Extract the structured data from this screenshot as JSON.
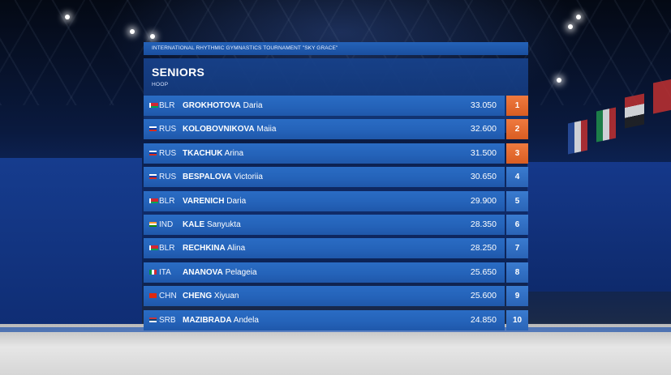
{
  "tournament_title": "INTERNATIONAL RHYTHMIC GYMNASTICS TOURNAMENT \"SKY GRACE\"",
  "category": "SENIORS",
  "apparatus": "HOOP",
  "results": [
    {
      "rank": "1",
      "noc": "BLR",
      "surname": "GROKHOTOVA",
      "given": "Daria",
      "score": "33.050",
      "flag_colors": [
        "#d22730",
        "#00a651"
      ],
      "medal": true
    },
    {
      "rank": "2",
      "noc": "RUS",
      "surname": "KOLOBOVNIKOVA",
      "given": "Maiia",
      "score": "32.600",
      "flag_colors": [
        "#ffffff",
        "#0039a6",
        "#d52b1e"
      ],
      "medal": true
    },
    {
      "rank": "3",
      "noc": "RUS",
      "surname": "TKACHUK",
      "given": "Arina",
      "score": "31.500",
      "flag_colors": [
        "#ffffff",
        "#0039a6",
        "#d52b1e"
      ],
      "medal": true
    },
    {
      "rank": "4",
      "noc": "RUS",
      "surname": "BESPALOVA",
      "given": "Victoriia",
      "score": "30.650",
      "flag_colors": [
        "#ffffff",
        "#0039a6",
        "#d52b1e"
      ],
      "medal": false
    },
    {
      "rank": "5",
      "noc": "BLR",
      "surname": "VARENICH",
      "given": "Daria",
      "score": "29.900",
      "flag_colors": [
        "#d22730",
        "#00a651"
      ],
      "medal": false
    },
    {
      "rank": "6",
      "noc": "IND",
      "surname": "KALE",
      "given": "Sanyukta",
      "score": "28.350",
      "flag_colors": [
        "#ff9933",
        "#ffffff",
        "#138808"
      ],
      "medal": false
    },
    {
      "rank": "7",
      "noc": "BLR",
      "surname": "RECHKINA",
      "given": "Alina",
      "score": "28.250",
      "flag_colors": [
        "#d22730",
        "#00a651"
      ],
      "medal": false
    },
    {
      "rank": "8",
      "noc": "ITA",
      "surname": "ANANOVA",
      "given": "Pelageia",
      "score": "25.650",
      "flag_colors": [
        "#009246",
        "#ffffff",
        "#ce2b37"
      ],
      "medal": false
    },
    {
      "rank": "9",
      "noc": "CHN",
      "surname": "CHENG",
      "given": "Xiyuan",
      "score": "25.600",
      "flag_colors": [
        "#de2910",
        "#de2910"
      ],
      "medal": false
    },
    {
      "rank": "10",
      "noc": "SRB",
      "surname": "MAZIBRADA",
      "given": "Andela",
      "score": "24.850",
      "flag_colors": [
        "#c6363c",
        "#0c4076",
        "#ffffff"
      ],
      "medal": false
    }
  ]
}
